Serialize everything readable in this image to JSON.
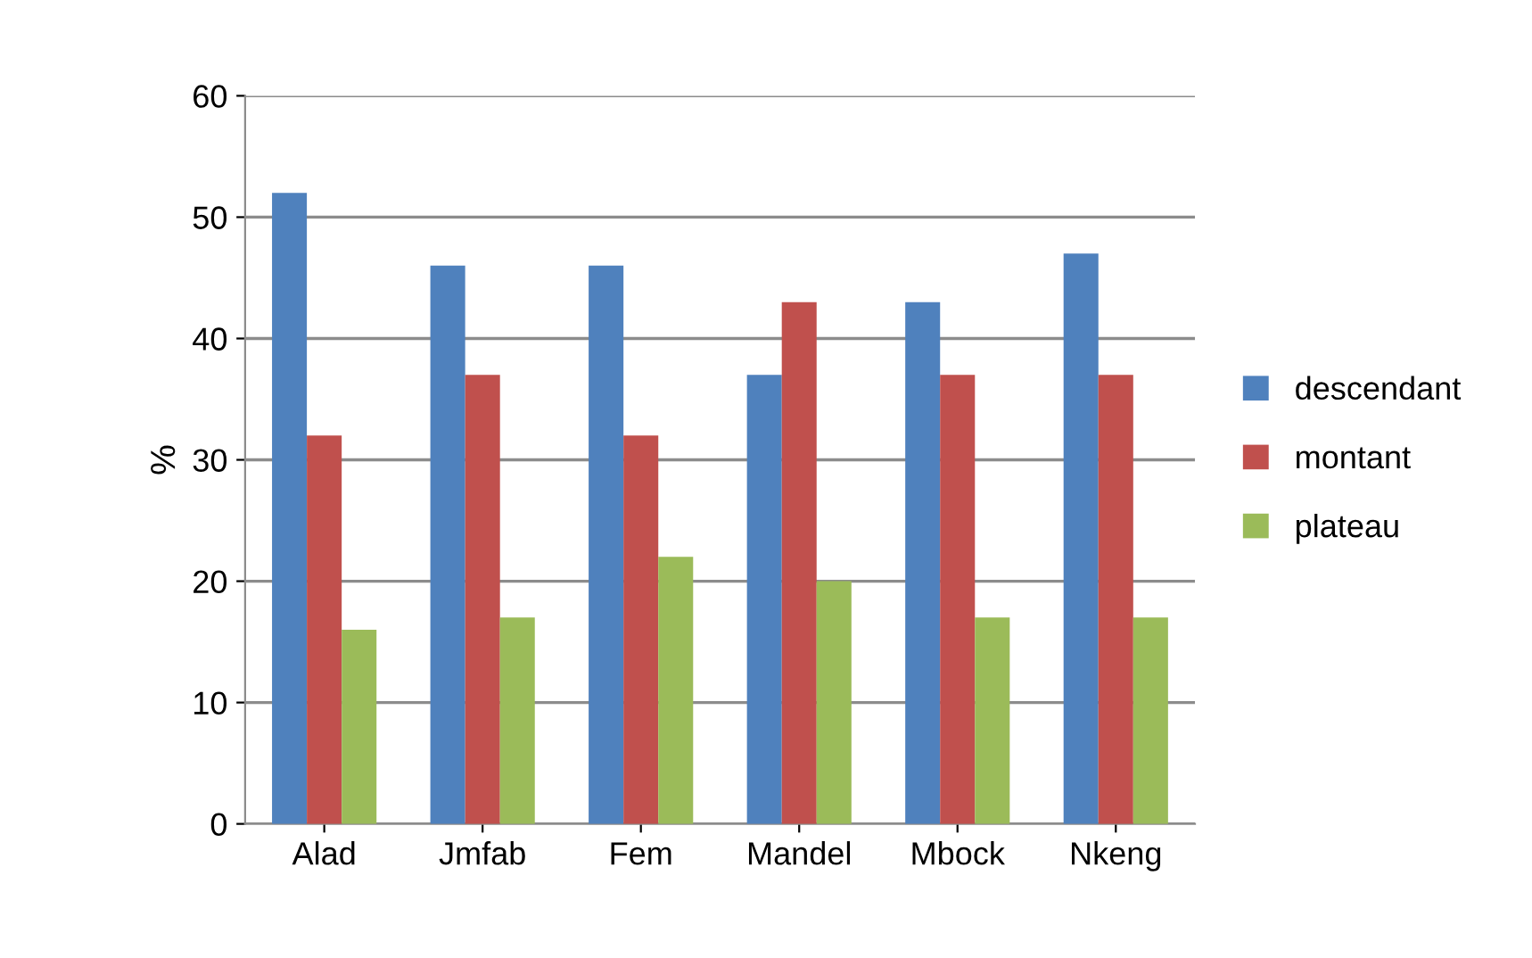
{
  "chart_data": {
    "type": "bar",
    "ylabel": "%",
    "categories": [
      "Alad",
      "Jmfab",
      "Fem",
      "Mandel",
      "Mbock",
      "Nkeng"
    ],
    "series": [
      {
        "name": "descendant",
        "color": "#4f81bd",
        "values": [
          52,
          46,
          46,
          37,
          43,
          47
        ]
      },
      {
        "name": "montant",
        "color": "#c0504d",
        "values": [
          32,
          37,
          32,
          43,
          37,
          37
        ]
      },
      {
        "name": "plateau",
        "color": "#9bbb59",
        "values": [
          16,
          17,
          22,
          20,
          17,
          17
        ]
      }
    ],
    "ylim": [
      0,
      60
    ],
    "yticks": [
      0,
      10,
      20,
      30,
      40,
      50,
      60
    ],
    "grid": "y",
    "legend": "right"
  }
}
